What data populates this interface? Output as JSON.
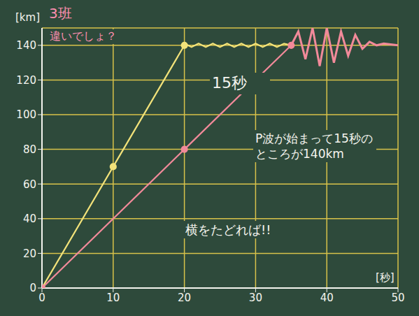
{
  "chart_data": {
    "type": "line",
    "title": "3班",
    "subtitle": "違いでしょ？",
    "x_label": "[秒]",
    "y_label": "[km]",
    "xlim": [
      0,
      50
    ],
    "xticks": [
      0,
      10,
      20,
      30,
      40,
      50
    ],
    "ylim": [
      0,
      150
    ],
    "yticks": [
      0,
      20,
      40,
      60,
      80,
      100,
      120,
      140
    ],
    "grid": true,
    "series": [
      {
        "color": "#f2e27a",
        "marker": "circle",
        "line_style": "solid",
        "x": [
          0,
          10,
          20
        ],
        "values": [
          0,
          70,
          140
        ]
      },
      {
        "color": "#f28a9a",
        "marker": "circle",
        "line_style": "solid",
        "x": [
          0,
          20,
          35
        ],
        "values": [
          0,
          80,
          140
        ]
      },
      {
        "color": "#f2e27a",
        "marker": "none",
        "line_style": "solid",
        "x": [
          20,
          21,
          22,
          23,
          24,
          25,
          26,
          27,
          28,
          29,
          30,
          31,
          32,
          33,
          34,
          35
        ],
        "values": [
          141,
          139,
          141,
          139,
          141,
          139,
          141,
          139,
          141,
          139,
          141,
          139,
          141,
          139,
          141,
          140
        ]
      },
      {
        "color": "#f28a9a",
        "marker": "none",
        "line_style": "solid",
        "x": [
          35,
          36,
          37,
          38,
          39,
          40,
          41,
          42,
          43,
          44,
          45,
          46,
          47,
          48,
          50
        ],
        "values": [
          140,
          148,
          132,
          150,
          128,
          150,
          130,
          148,
          134,
          146,
          138,
          142,
          140,
          141,
          140
        ]
      }
    ],
    "annotations": [
      "15秒",
      "P波が始まって15秒のところが140km",
      "横をたどれば!!"
    ]
  }
}
